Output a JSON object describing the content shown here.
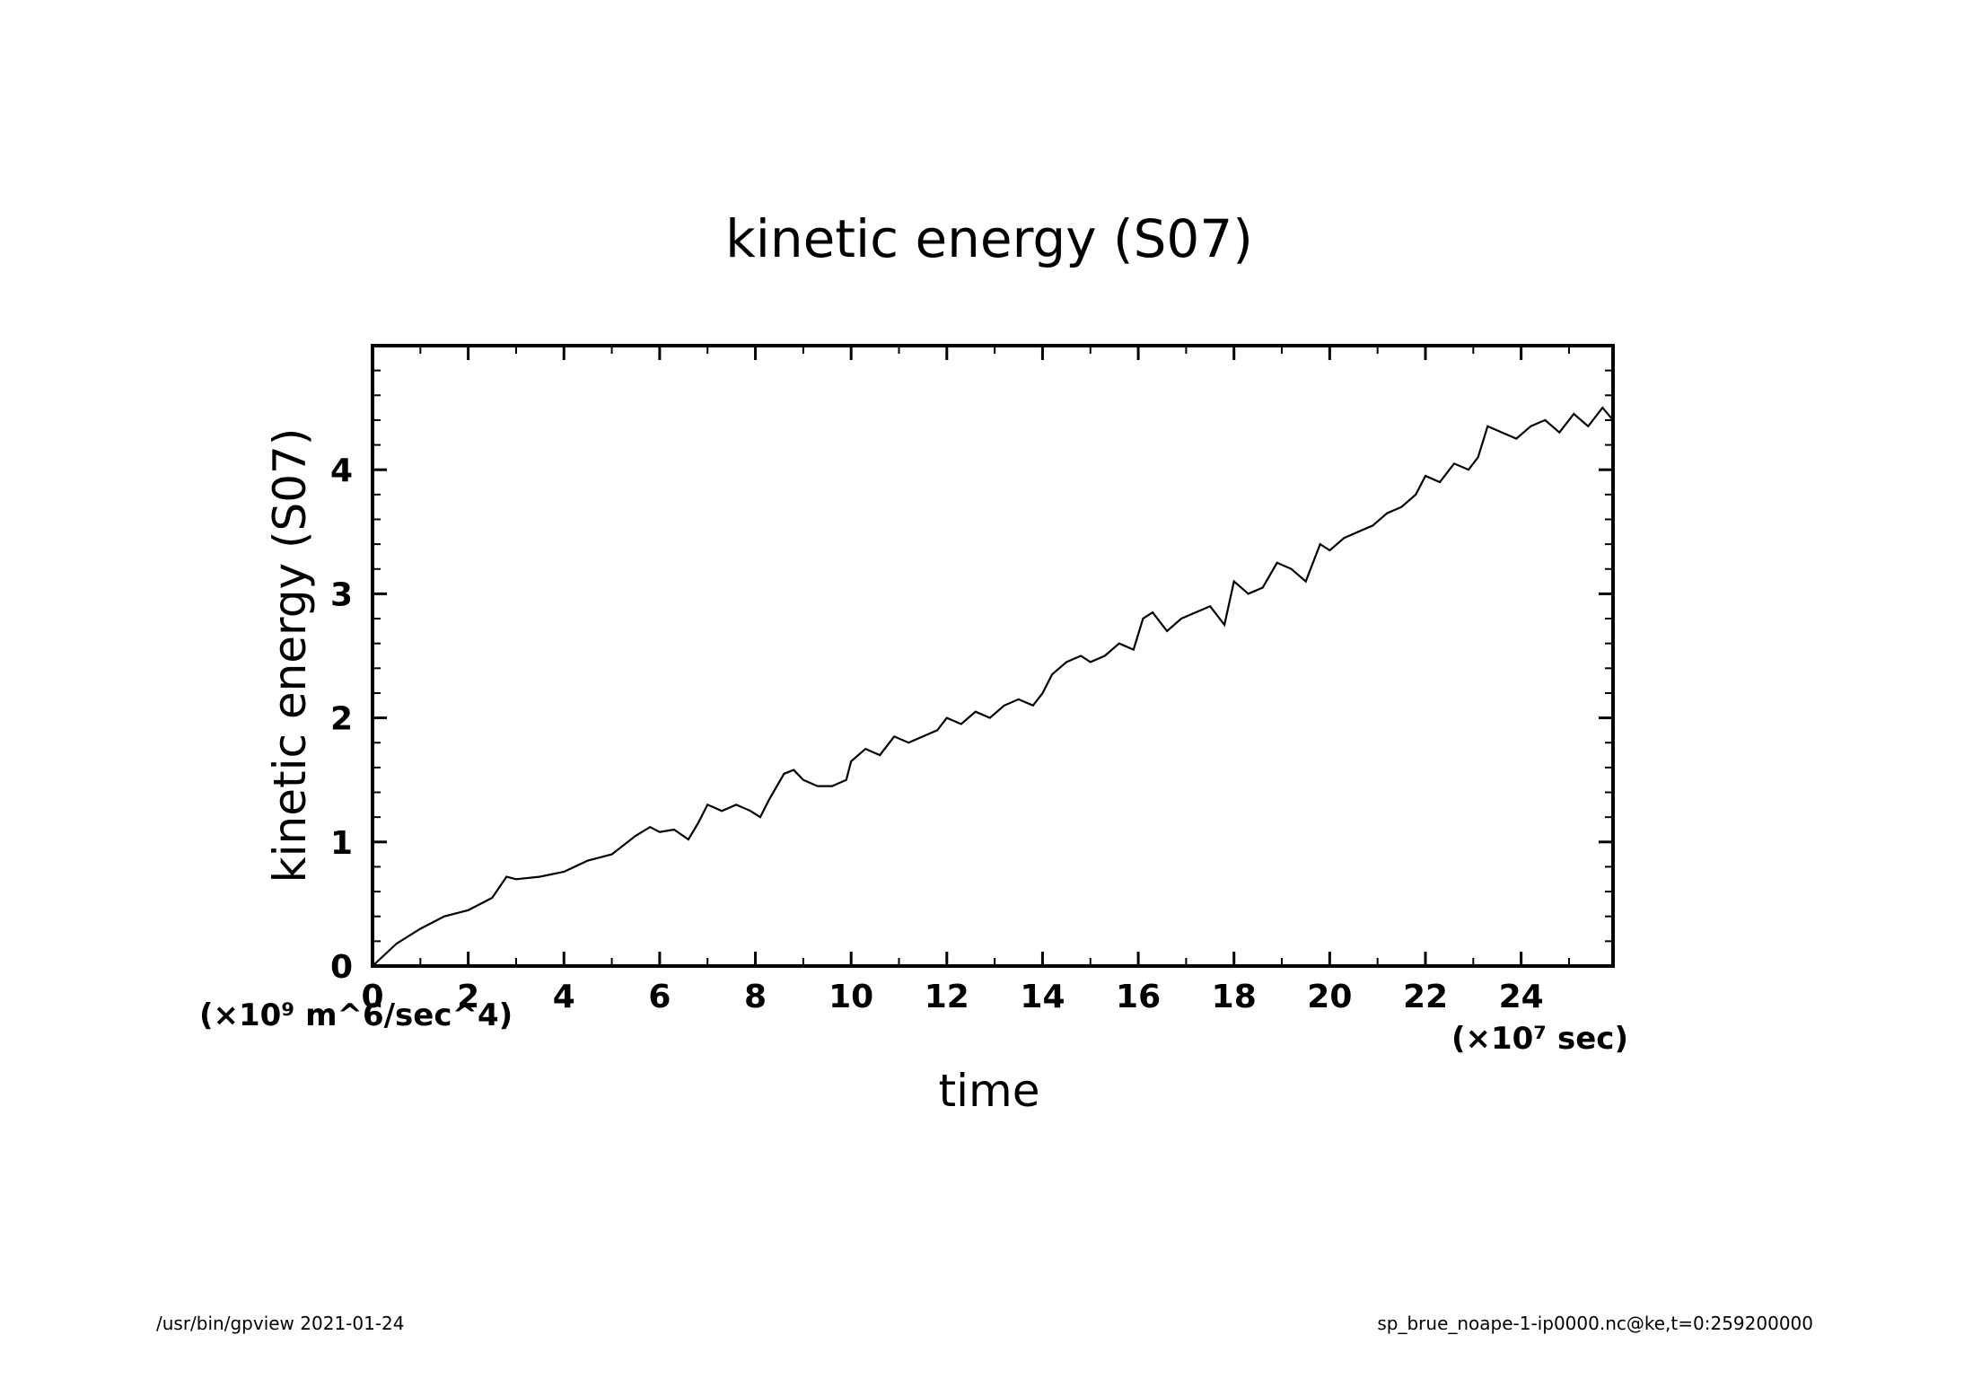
{
  "chart_data": {
    "type": "line",
    "title": "kinetic energy (S07)",
    "xlabel": "time",
    "ylabel": "kinetic energy (S07)",
    "x_unit_label": "(×10⁷ sec)",
    "y_unit_label": "(×10⁹ m^6/sec^4)",
    "xlim": [
      0,
      25.92
    ],
    "ylim": [
      0,
      5
    ],
    "x_ticks": [
      0,
      2,
      4,
      6,
      8,
      10,
      12,
      14,
      16,
      18,
      20,
      22,
      24
    ],
    "y_ticks": [
      0,
      1,
      2,
      3,
      4
    ],
    "grid": false,
    "series": [
      {
        "x": [
          0,
          0.5,
          1,
          1.5,
          2,
          2.5,
          2.8,
          3,
          3.5,
          4,
          4.5,
          5,
          5.5,
          5.8,
          6,
          6.3,
          6.6,
          6.8,
          7,
          7.3,
          7.6,
          7.9,
          8.1,
          8.3,
          8.6,
          8.8,
          9,
          9.3,
          9.6,
          9.9,
          10,
          10.3,
          10.6,
          10.9,
          11.2,
          11.5,
          11.8,
          12,
          12.3,
          12.6,
          12.9,
          13.2,
          13.5,
          13.8,
          14,
          14.2,
          14.5,
          14.8,
          15,
          15.3,
          15.6,
          15.9,
          16.1,
          16.3,
          16.6,
          16.9,
          17.2,
          17.5,
          17.8,
          18,
          18.3,
          18.6,
          18.9,
          19.2,
          19.5,
          19.8,
          20,
          20.3,
          20.6,
          20.9,
          21.2,
          21.5,
          21.8,
          22,
          22.3,
          22.6,
          22.9,
          23.1,
          23.3,
          23.6,
          23.9,
          24.2,
          24.5,
          24.8,
          25.1,
          25.4,
          25.7,
          25.92
        ],
        "y": [
          0,
          0.18,
          0.3,
          0.4,
          0.45,
          0.55,
          0.72,
          0.7,
          0.72,
          0.76,
          0.85,
          0.9,
          1.05,
          1.12,
          1.08,
          1.1,
          1.02,
          1.15,
          1.3,
          1.25,
          1.3,
          1.25,
          1.2,
          1.35,
          1.55,
          1.58,
          1.5,
          1.45,
          1.45,
          1.5,
          1.65,
          1.75,
          1.7,
          1.85,
          1.8,
          1.85,
          1.9,
          2.0,
          1.95,
          2.05,
          2.0,
          2.1,
          2.15,
          2.1,
          2.2,
          2.35,
          2.45,
          2.5,
          2.45,
          2.5,
          2.6,
          2.55,
          2.8,
          2.85,
          2.7,
          2.8,
          2.85,
          2.9,
          2.75,
          3.1,
          3.0,
          3.05,
          3.25,
          3.2,
          3.1,
          3.4,
          3.35,
          3.45,
          3.5,
          3.55,
          3.65,
          3.7,
          3.8,
          3.95,
          3.9,
          4.05,
          4.0,
          4.1,
          4.35,
          4.3,
          4.25,
          4.35,
          4.4,
          4.3,
          4.45,
          4.35,
          4.5,
          4.4
        ]
      }
    ]
  },
  "footer": {
    "left": "/usr/bin/gpview   2021-01-24",
    "right": "sp_brue_noape-1-ip0000.nc@ke,t=0:259200000"
  }
}
